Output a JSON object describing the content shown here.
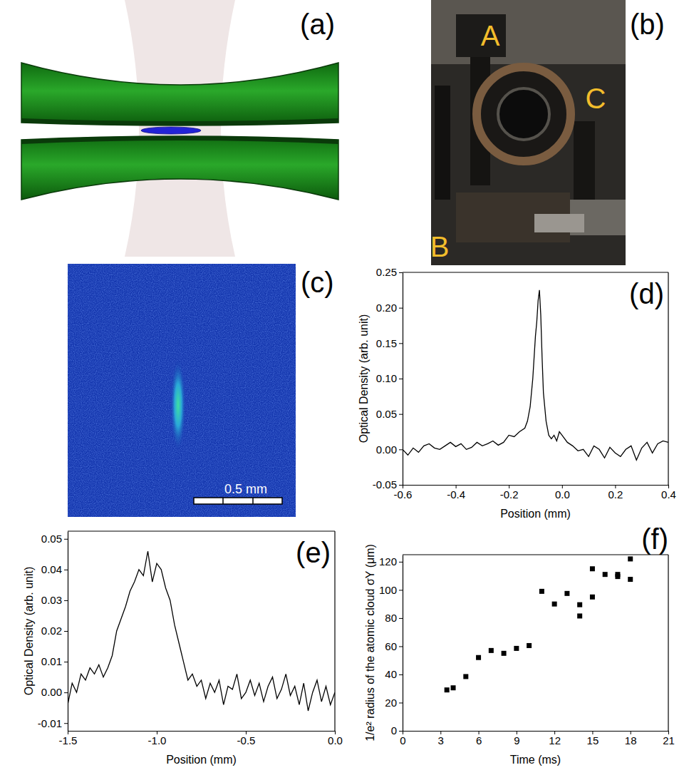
{
  "figure": {
    "panels": [
      {
        "letter": "(a)"
      },
      {
        "letter": "(b)",
        "labels": [
          "A",
          "B",
          "C"
        ]
      },
      {
        "letter": "(c)",
        "scale_bar": "0.5 mm"
      }
    ]
  },
  "chart_data": [
    {
      "type": "line",
      "title": "(d)",
      "x_label": "Position (mm)",
      "y_label": "Optical Density (arb. unit)",
      "color": "#000000",
      "grid": false,
      "x": [
        -0.6,
        -0.58,
        -0.56,
        -0.54,
        -0.52,
        -0.5,
        -0.48,
        -0.46,
        -0.44,
        -0.42,
        -0.4,
        -0.38,
        -0.36,
        -0.34,
        -0.32,
        -0.3,
        -0.28,
        -0.26,
        -0.24,
        -0.22,
        -0.2,
        -0.18,
        -0.16,
        -0.14,
        -0.13,
        -0.12,
        -0.11,
        -0.1,
        -0.095,
        -0.09,
        -0.085,
        -0.08,
        -0.075,
        -0.07,
        -0.06,
        -0.05,
        -0.04,
        -0.03,
        -0.02,
        -0.01,
        0.0,
        0.02,
        0.04,
        0.06,
        0.08,
        0.1,
        0.12,
        0.14,
        0.16,
        0.18,
        0.2,
        0.22,
        0.24,
        0.26,
        0.28,
        0.3,
        0.32,
        0.34,
        0.36,
        0.38,
        0.4
      ],
      "values": [
        0.0,
        -0.008,
        0.002,
        -0.004,
        0.005,
        0.008,
        0.002,
        0.0,
        0.005,
        0.01,
        0.004,
        0.008,
        0.0,
        0.003,
        0.01,
        0.005,
        0.008,
        0.012,
        0.006,
        0.01,
        0.02,
        0.018,
        0.025,
        0.03,
        0.04,
        0.06,
        0.1,
        0.16,
        0.18,
        0.21,
        0.225,
        0.19,
        0.13,
        0.08,
        0.04,
        0.02,
        0.015,
        0.02,
        0.012,
        0.025,
        0.02,
        0.01,
        0.005,
        -0.002,
        0.0,
        -0.01,
        0.005,
        0.0,
        -0.012,
        0.003,
        -0.005,
        -0.01,
        0.0,
        0.005,
        -0.015,
        0.002,
        0.01,
        -0.005,
        0.008,
        0.012,
        0.01
      ],
      "xlim": [
        -0.6,
        0.4
      ],
      "xticks": [
        -0.6,
        -0.4,
        -0.2,
        {
          "value": 0,
          "label": "0.0"
        },
        0.2,
        0.4
      ],
      "ylim": [
        -0.05,
        0.25
      ],
      "yticks": [
        -0.05,
        {
          "value": 0,
          "label": "0.00"
        },
        0.05,
        {
          "value": 0.1,
          "label": "0.10"
        },
        0.15,
        {
          "value": 0.2,
          "label": "0.20"
        },
        0.25
      ]
    },
    {
      "type": "line",
      "title": "(e)",
      "x_label": "Position (mm)",
      "y_label": "Optical Density (arb. unit)",
      "color": "#000000",
      "grid": false,
      "x": [
        -1.5,
        -1.475,
        -1.45,
        -1.425,
        -1.4,
        -1.375,
        -1.35,
        -1.325,
        -1.3,
        -1.275,
        -1.25,
        -1.225,
        -1.2,
        -1.175,
        -1.15,
        -1.125,
        -1.1,
        -1.075,
        -1.05,
        -1.025,
        -1.0,
        -0.975,
        -0.95,
        -0.925,
        -0.9,
        -0.875,
        -0.85,
        -0.825,
        -0.8,
        -0.775,
        -0.75,
        -0.725,
        -0.7,
        -0.675,
        -0.65,
        -0.625,
        -0.6,
        -0.575,
        -0.55,
        -0.525,
        -0.5,
        -0.475,
        -0.45,
        -0.425,
        -0.4,
        -0.375,
        -0.35,
        -0.325,
        -0.3,
        -0.275,
        -0.25,
        -0.225,
        -0.2,
        -0.175,
        -0.15,
        -0.125,
        -0.1,
        -0.075,
        -0.05,
        -0.025,
        0.0
      ],
      "values": [
        -0.004,
        0.003,
        0.0,
        0.006,
        0.004,
        0.008,
        0.006,
        0.009,
        0.005,
        0.008,
        0.012,
        0.02,
        0.024,
        0.028,
        0.033,
        0.036,
        0.04,
        0.038,
        0.046,
        0.036,
        0.042,
        0.04,
        0.034,
        0.03,
        0.022,
        0.016,
        0.01,
        0.004,
        0.006,
        0.002,
        0.004,
        -0.002,
        0.003,
        0.0,
        0.004,
        -0.004,
        0.002,
        0.001,
        0.006,
        -0.002,
        0.0,
        0.004,
        -0.001,
        0.003,
        -0.003,
        0.002,
        0.005,
        -0.002,
        0.001,
        0.006,
        -0.001,
        0.002,
        -0.004,
        0.003,
        -0.006,
        0.0,
        0.004,
        -0.003,
        0.002,
        -0.004,
        0.0
      ],
      "xlim": [
        -1.5,
        0.0
      ],
      "xticks": [
        -1.5,
        {
          "value": -1,
          "label": "-1.0"
        },
        -0.5,
        {
          "value": 0,
          "label": "0.0"
        }
      ],
      "ylim": [
        -0.0125,
        0.0525
      ],
      "yticks": [
        -0.01,
        {
          "value": 0,
          "label": "0.00"
        },
        0.01,
        0.02,
        0.03,
        0.04,
        0.05
      ]
    },
    {
      "type": "scatter",
      "title": "(f)",
      "x_label": "Time (ms)",
      "y_label": "1/e² radius of the atomic cloud σY (μm)",
      "color": "#000000",
      "marker": "square",
      "grid": false,
      "x": [
        3.5,
        4,
        5,
        6,
        7,
        8,
        9,
        10,
        11,
        12,
        13,
        14,
        14,
        15,
        15,
        16,
        17,
        17,
        18,
        18
      ],
      "values": [
        29,
        30.5,
        38.5,
        52,
        57,
        55,
        58.5,
        60.5,
        99,
        90,
        97.5,
        89.5,
        81.5,
        115,
        95,
        111,
        109.5,
        111,
        122,
        107.5
      ],
      "xlim": [
        0,
        21
      ],
      "xticks": [
        0,
        3,
        6,
        9,
        12,
        15,
        18,
        21
      ],
      "ylim": [
        0,
        125
      ],
      "yticks": [
        0,
        20,
        40,
        60,
        80,
        100,
        120
      ]
    }
  ]
}
